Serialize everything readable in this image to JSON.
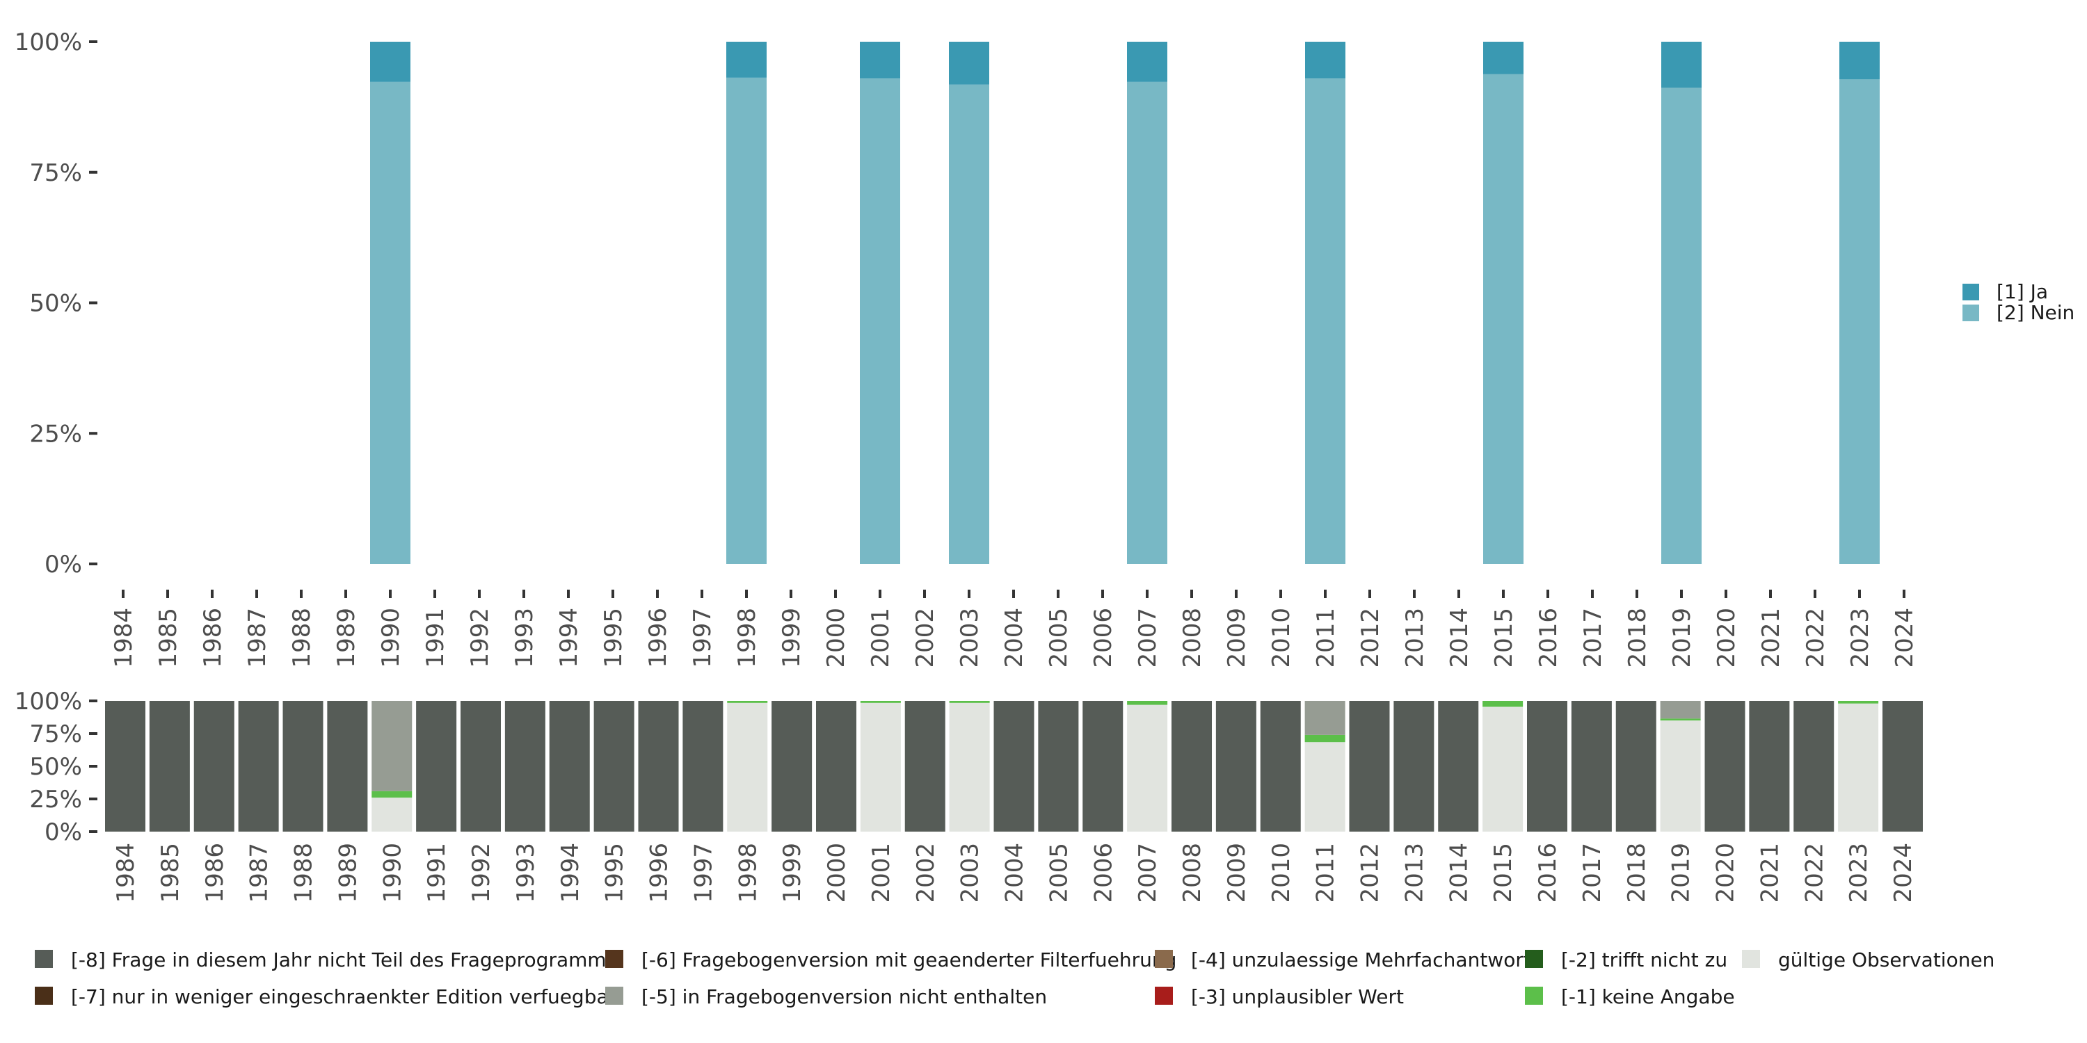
{
  "chart_data": [
    {
      "type": "bar",
      "stacked": true,
      "title": "",
      "xlabel": "",
      "ylabel": "",
      "ylim": [
        0,
        100
      ],
      "y_ticks": [
        "0%",
        "25%",
        "50%",
        "75%",
        "100%"
      ],
      "categories": [
        "1984",
        "1985",
        "1986",
        "1987",
        "1988",
        "1989",
        "1990",
        "1991",
        "1992",
        "1993",
        "1994",
        "1995",
        "1996",
        "1997",
        "1998",
        "1999",
        "2000",
        "2001",
        "2002",
        "2003",
        "2004",
        "2005",
        "2006",
        "2007",
        "2008",
        "2009",
        "2010",
        "2011",
        "2012",
        "2013",
        "2014",
        "2015",
        "2016",
        "2017",
        "2018",
        "2019",
        "2020",
        "2021",
        "2022",
        "2023",
        "2024"
      ],
      "legend_position": "right",
      "series": [
        {
          "name": "[2] Nein",
          "color": "#78b8c5",
          "values": [
            null,
            null,
            null,
            null,
            null,
            null,
            92.3,
            null,
            null,
            null,
            null,
            null,
            null,
            null,
            93.1,
            null,
            null,
            93.0,
            null,
            91.8,
            null,
            null,
            null,
            92.3,
            null,
            null,
            null,
            93.0,
            null,
            null,
            null,
            93.8,
            null,
            null,
            null,
            91.2,
            null,
            null,
            null,
            92.8,
            null
          ]
        },
        {
          "name": "[1] Ja",
          "color": "#3a99b2",
          "values": [
            null,
            null,
            null,
            null,
            null,
            null,
            7.7,
            null,
            null,
            null,
            null,
            null,
            null,
            null,
            6.9,
            null,
            null,
            7.0,
            null,
            8.2,
            null,
            null,
            null,
            7.7,
            null,
            null,
            null,
            7.0,
            null,
            null,
            null,
            6.2,
            null,
            null,
            null,
            8.8,
            null,
            null,
            null,
            7.2,
            null
          ]
        }
      ]
    },
    {
      "type": "bar",
      "stacked": true,
      "title": "",
      "xlabel": "",
      "ylabel": "",
      "ylim": [
        0,
        100
      ],
      "y_ticks": [
        "0%",
        "25%",
        "50%",
        "75%",
        "100%"
      ],
      "categories": [
        "1984",
        "1985",
        "1986",
        "1987",
        "1988",
        "1989",
        "1990",
        "1991",
        "1992",
        "1993",
        "1994",
        "1995",
        "1996",
        "1997",
        "1998",
        "1999",
        "2000",
        "2001",
        "2002",
        "2003",
        "2004",
        "2005",
        "2006",
        "2007",
        "2008",
        "2009",
        "2010",
        "2011",
        "2012",
        "2013",
        "2014",
        "2015",
        "2016",
        "2017",
        "2018",
        "2019",
        "2020",
        "2021",
        "2022",
        "2023",
        "2024"
      ],
      "legend_position": "bottom",
      "series": [
        {
          "name": "gültige Observationen",
          "color": "#e1e4df",
          "values": [
            0,
            0,
            0,
            0,
            0,
            0,
            26,
            0,
            0,
            0,
            0,
            0,
            0,
            0,
            98.5,
            0,
            0,
            98.5,
            0,
            98.5,
            0,
            0,
            0,
            97,
            0,
            0,
            0,
            68.5,
            0,
            0,
            0,
            95.5,
            0,
            0,
            0,
            85,
            0,
            0,
            0,
            98,
            0
          ]
        },
        {
          "name": "[-1] keine Angabe",
          "color": "#5cbf4a",
          "values": [
            0,
            0,
            0,
            0,
            0,
            0,
            5,
            0,
            0,
            0,
            0,
            0,
            0,
            0,
            1.5,
            0,
            0,
            1.5,
            0,
            1.5,
            0,
            0,
            0,
            3,
            0,
            0,
            0,
            5.5,
            0,
            0,
            0,
            4.5,
            0,
            0,
            0,
            1.5,
            0,
            0,
            0,
            2,
            0
          ]
        },
        {
          "name": "[-2] trifft nicht zu",
          "color": "#245d1c",
          "values": [
            0,
            0,
            0,
            0,
            0,
            0,
            0,
            0,
            0,
            0,
            0,
            0,
            0,
            0,
            0,
            0,
            0,
            0,
            0,
            0,
            0,
            0,
            0,
            0,
            0,
            0,
            0,
            0,
            0,
            0,
            0,
            0,
            0,
            0,
            0,
            0,
            0,
            0,
            0,
            0,
            0
          ]
        },
        {
          "name": "[-3] unplausibler Wert",
          "color": "#a81d1b",
          "values": [
            0,
            0,
            0,
            0,
            0,
            0,
            0,
            0,
            0,
            0,
            0,
            0,
            0,
            0,
            0,
            0,
            0,
            0,
            0,
            0,
            0,
            0,
            0,
            0,
            0,
            0,
            0,
            0,
            0,
            0,
            0,
            0,
            0,
            0,
            0,
            0,
            0,
            0,
            0,
            0,
            0
          ]
        },
        {
          "name": "[-4] unzulaessige Mehrfachantwort",
          "color": "#8a6a4c",
          "values": [
            0,
            0,
            0,
            0,
            0,
            0,
            0,
            0,
            0,
            0,
            0,
            0,
            0,
            0,
            0,
            0,
            0,
            0,
            0,
            0,
            0,
            0,
            0,
            0,
            0,
            0,
            0,
            0,
            0,
            0,
            0,
            0,
            0,
            0,
            0,
            0,
            0,
            0,
            0,
            0,
            0
          ]
        },
        {
          "name": "[-5] in Fragebogenversion nicht enthalten",
          "color": "#969c93",
          "values": [
            0,
            0,
            0,
            0,
            0,
            0,
            69,
            0,
            0,
            0,
            0,
            0,
            0,
            0,
            0,
            0,
            0,
            0,
            0,
            0,
            0,
            0,
            0,
            0,
            0,
            0,
            0,
            26,
            0,
            0,
            0,
            0,
            0,
            0,
            0,
            13.5,
            0,
            0,
            0,
            0,
            0
          ]
        },
        {
          "name": "[-6] Fragebogenversion mit geaenderter Filterfuehrung",
          "color": "#55351d",
          "values": [
            0,
            0,
            0,
            0,
            0,
            0,
            0,
            0,
            0,
            0,
            0,
            0,
            0,
            0,
            0,
            0,
            0,
            0,
            0,
            0,
            0,
            0,
            0,
            0,
            0,
            0,
            0,
            0,
            0,
            0,
            0,
            0,
            0,
            0,
            0,
            0,
            0,
            0,
            0,
            0,
            0
          ]
        },
        {
          "name": "[-7] nur in weniger eingeschraenkter Edition verfuegbar",
          "color": "#4a2f18",
          "values": [
            0,
            0,
            0,
            0,
            0,
            0,
            0,
            0,
            0,
            0,
            0,
            0,
            0,
            0,
            0,
            0,
            0,
            0,
            0,
            0,
            0,
            0,
            0,
            0,
            0,
            0,
            0,
            0,
            0,
            0,
            0,
            0,
            0,
            0,
            0,
            0,
            0,
            0,
            0,
            0,
            0
          ]
        },
        {
          "name": "[-8] Frage in diesem Jahr nicht Teil des Frageprogramms",
          "color": "#565c57",
          "values": [
            100,
            100,
            100,
            100,
            100,
            100,
            0,
            100,
            100,
            100,
            100,
            100,
            100,
            100,
            0,
            100,
            100,
            0,
            100,
            0,
            100,
            100,
            100,
            0,
            100,
            100,
            100,
            0,
            100,
            100,
            100,
            0,
            100,
            100,
            100,
            0,
            100,
            100,
            100,
            0,
            100
          ]
        }
      ],
      "legend_layout": [
        "[-8] Frage in diesem Jahr nicht Teil des Frageprogramms",
        "[-7] nur in weniger eingeschraenkter Edition verfuegbar",
        "[-6] Fragebogenversion mit geaenderter Filterfuehrung",
        "[-5] in Fragebogenversion nicht enthalten",
        "[-4] unzulaessige Mehrfachantwort",
        "[-3] unplausibler Wert",
        "[-2] trifft nicht zu",
        "[-1] keine Angabe",
        "gültige Observationen"
      ]
    }
  ]
}
